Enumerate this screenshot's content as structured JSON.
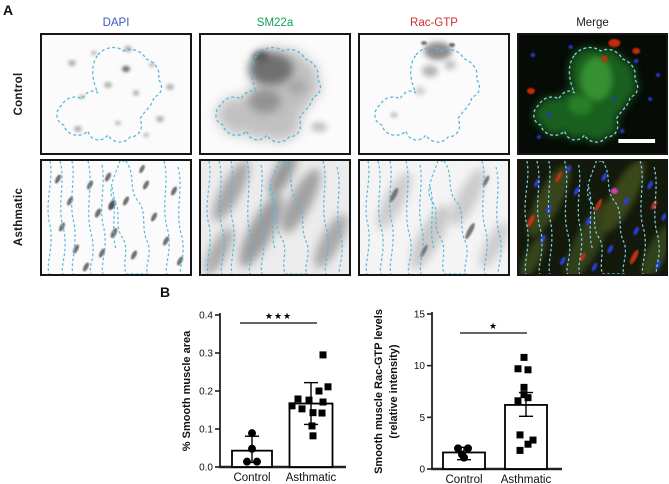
{
  "panel_a": {
    "label": "A",
    "column_headers": [
      {
        "label": "DAPI",
        "color": "#3b5bbb"
      },
      {
        "label": "SM22a",
        "color": "#0fa257"
      },
      {
        "label": "Rac-GTP",
        "color": "#d22b2f"
      },
      {
        "label": "Merge",
        "color": "#1c1c1c"
      }
    ],
    "row_labels": [
      "Control",
      "Asthmatic"
    ],
    "roi_outline_color": "#57b8dc",
    "merge_outline_color": "#7fd2e8"
  },
  "panel_b": {
    "label": "B"
  },
  "chart_data": [
    {
      "type": "bar",
      "ylabel": "% Smooth muscle area",
      "ylim": [
        0,
        0.4
      ],
      "yticks": [
        0,
        0.1,
        0.2,
        0.3,
        0.4
      ],
      "ytick_labels": [
        "0.0",
        "0.1",
        "0.2",
        "0.3",
        "0.4"
      ],
      "categories": [
        "Control",
        "Asthmatic"
      ],
      "values": [
        0.043,
        0.167
      ],
      "error_high": [
        0.081,
        0.222
      ],
      "error_low": [
        0.012,
        0.112
      ],
      "markers": [
        "circle",
        "square"
      ],
      "points": [
        [
          0.089,
          0.048,
          0.014,
          0.014
        ],
        [
          0.295,
          0.211,
          0.2,
          0.179,
          0.176,
          0.171,
          0.161,
          0.153,
          0.143,
          0.142,
          0.108,
          0.082
        ]
      ],
      "point_dx": [
        [
          0,
          0,
          -5,
          5
        ],
        [
          12,
          17,
          8,
          -13,
          -2,
          12,
          -19,
          -9,
          2,
          11,
          1,
          2
        ]
      ],
      "significance": "***",
      "legend_position": "none",
      "grid": false
    },
    {
      "type": "bar",
      "ylabel": "Smooth muscle Rac-GTP levels",
      "ylabel2": "(relative intensity)",
      "ylim": [
        0,
        15
      ],
      "yticks": [
        0,
        5,
        10,
        15
      ],
      "ytick_labels": [
        "0",
        "5",
        "10",
        "15"
      ],
      "categories": [
        "Control",
        "Asthmatic"
      ],
      "values": [
        1.6,
        6.2
      ],
      "error_high": [
        2.1,
        7.4
      ],
      "error_low": [
        0.9,
        5.1
      ],
      "markers": [
        "circle",
        "square"
      ],
      "points": [
        [
          2.0,
          2.0,
          1.4,
          1.1
        ],
        [
          10.8,
          9.7,
          9.6,
          7.9,
          7.2,
          6.9,
          6.6,
          3.3,
          2.8,
          2.4,
          1.8
        ]
      ],
      "point_dx": [
        [
          -6,
          4,
          -2,
          0
        ],
        [
          -2,
          -8,
          2,
          -2,
          -2,
          2,
          -8,
          -6,
          7,
          2,
          -6
        ]
      ],
      "significance": "*",
      "legend_position": "none",
      "grid": false
    }
  ]
}
